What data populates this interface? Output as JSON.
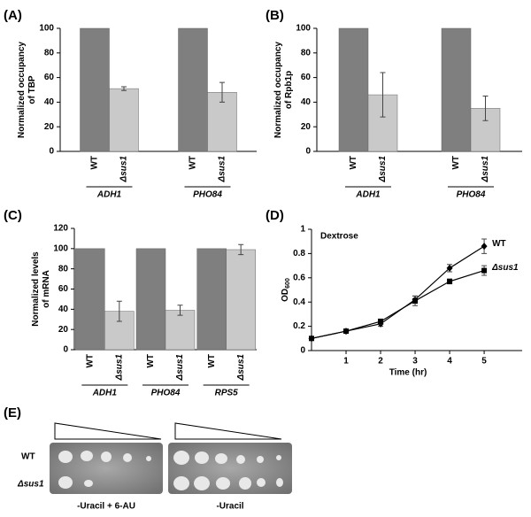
{
  "chart_data": [
    {
      "type": "bar",
      "label": "(A)",
      "ylabel": [
        "Normalized occupancy",
        "of TBP"
      ],
      "categories": [
        "ADH1",
        "PHO84"
      ],
      "series": [
        {
          "name": "WT",
          "color": "#7f7f7f",
          "values": [
            100,
            100
          ],
          "errors": [
            null,
            null
          ]
        },
        {
          "name": "Δsus1",
          "color": "#c9c9c9",
          "values": [
            51,
            48
          ],
          "errors": [
            1.5,
            8
          ]
        }
      ],
      "ylim": [
        0,
        100
      ],
      "yticks": [
        0,
        20,
        40,
        60,
        80,
        100
      ]
    },
    {
      "type": "bar",
      "label": "(B)",
      "ylabel": [
        "Normalized occupancy",
        "of Rpb1p"
      ],
      "categories": [
        "ADH1",
        "PHO84"
      ],
      "series": [
        {
          "name": "WT",
          "color": "#7f7f7f",
          "values": [
            100,
            100
          ],
          "errors": [
            null,
            null
          ]
        },
        {
          "name": "Δsus1",
          "color": "#c9c9c9",
          "values": [
            46,
            35
          ],
          "errors": [
            18,
            10
          ]
        }
      ],
      "ylim": [
        0,
        100
      ],
      "yticks": [
        0,
        20,
        40,
        60,
        80,
        100
      ]
    },
    {
      "type": "bar",
      "label": "(C)",
      "ylabel": [
        "Normalized levels",
        "of mRNA"
      ],
      "categories": [
        "ADH1",
        "PHO84",
        "RPS5"
      ],
      "series": [
        {
          "name": "WT",
          "color": "#7f7f7f",
          "values": [
            100,
            100,
            100
          ],
          "errors": [
            null,
            null,
            null
          ]
        },
        {
          "name": "Δsus1",
          "color": "#c9c9c9",
          "values": [
            38,
            39,
            99
          ],
          "errors": [
            10,
            5,
            5
          ]
        }
      ],
      "ylim": [
        0,
        120
      ],
      "yticks": [
        0,
        20,
        40,
        60,
        80,
        100,
        120
      ]
    },
    {
      "type": "line",
      "label": "(D)",
      "title": "Dextrose",
      "ylabel": "OD",
      "ylabel_sub": "600",
      "xlabel": "Time (hr)",
      "x": [
        0,
        1,
        2,
        3,
        4,
        5
      ],
      "series": [
        {
          "name": "WT",
          "color": "#000000",
          "marker": "diamond",
          "values": [
            0.1,
            0.16,
            0.22,
            0.42,
            0.68,
            0.86
          ],
          "errors": [
            0.01,
            0.01,
            0.02,
            0.03,
            0.03,
            0.06
          ]
        },
        {
          "name": "Δsus1",
          "color": "#000000",
          "marker": "square",
          "values": [
            0.1,
            0.16,
            0.24,
            0.41,
            0.57,
            0.66
          ],
          "errors": [
            0.01,
            0.01,
            0.02,
            0.04,
            0.02,
            0.04
          ]
        }
      ],
      "xlim": [
        0,
        6.1
      ],
      "xticks": [
        1,
        2,
        3,
        4,
        5
      ],
      "ylim": [
        0,
        1
      ],
      "yticks": [
        0,
        0.2,
        0.4,
        0.6,
        0.8,
        1
      ]
    }
  ],
  "panel_e": {
    "label": "(E)",
    "rows": [
      "WT",
      "Δsus1"
    ],
    "conditions": [
      "-Uracil + 6-AU",
      "-Uracil"
    ]
  }
}
